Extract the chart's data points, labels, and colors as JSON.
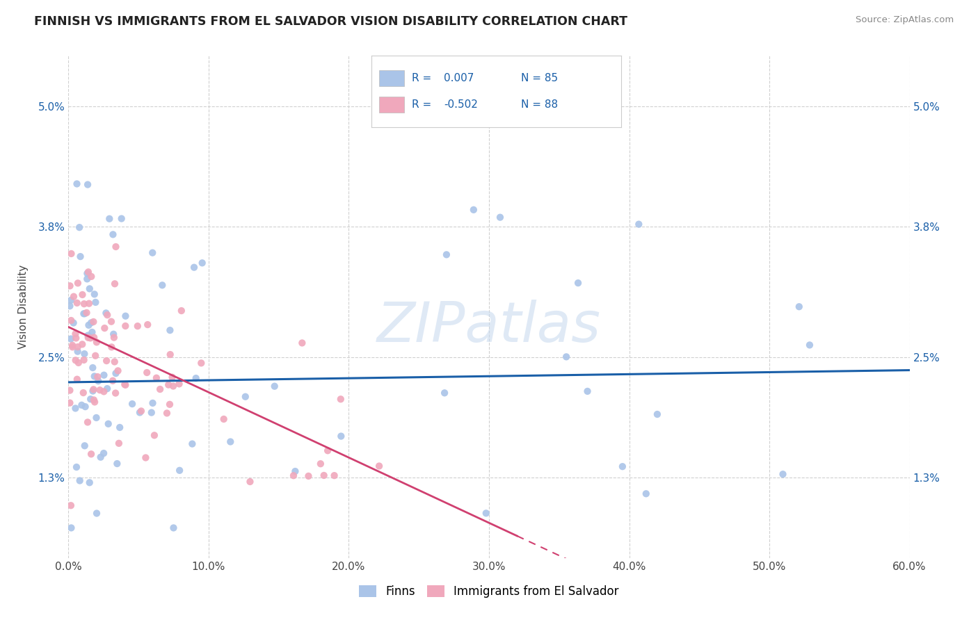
{
  "title": "FINNISH VS IMMIGRANTS FROM EL SALVADOR VISION DISABILITY CORRELATION CHART",
  "source": "Source: ZipAtlas.com",
  "ylabel_label": "Vision Disability",
  "xlim": [
    0.0,
    0.6
  ],
  "ylim": [
    0.005,
    0.055
  ],
  "y_tick_vals": [
    0.013,
    0.025,
    0.038,
    0.05
  ],
  "ylabel_ticks": [
    "1.3%",
    "2.5%",
    "3.8%",
    "5.0%"
  ],
  "x_tick_vals": [
    0.0,
    0.1,
    0.2,
    0.3,
    0.4,
    0.5,
    0.6
  ],
  "legend_r1": "R =  0.007",
  "legend_n1": "N = 85",
  "legend_r2": "R = -0.502",
  "legend_n2": "N = 88",
  "legend_label1": "Finns",
  "legend_label2": "Immigrants from El Salvador",
  "color_finns": "#aac4e8",
  "color_immigrants": "#f0a8bc",
  "color_trendline_finns": "#1a5fa8",
  "color_trendline_immigrants": "#d04070",
  "color_blue_text": "#1a5fa8",
  "watermark": "ZIPatlas",
  "background_color": "#ffffff",
  "grid_color": "#d0d0d0"
}
